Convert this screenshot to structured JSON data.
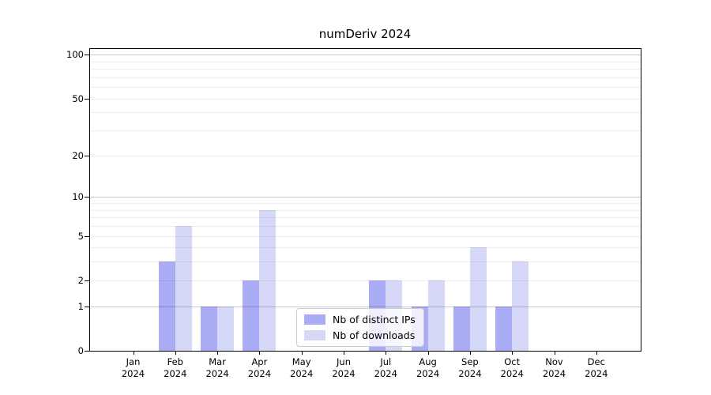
{
  "title": "numDeriv 2024",
  "chart_data": {
    "type": "bar",
    "title": "numDeriv 2024",
    "categories": [
      "Jan",
      "Feb",
      "Mar",
      "Apr",
      "May",
      "Jun",
      "Jul",
      "Aug",
      "Sep",
      "Oct",
      "Nov",
      "Dec"
    ],
    "year": "2024",
    "xlabel": "",
    "ylabel": "",
    "yscale": "log1p",
    "ylim": [
      0,
      110
    ],
    "ytick_labels": [
      0,
      1,
      2,
      5,
      10,
      20,
      50,
      100
    ],
    "grid_minor_values": [
      2,
      3,
      4,
      5,
      6,
      7,
      8,
      9,
      20,
      30,
      40,
      50,
      60,
      70,
      80,
      90
    ],
    "grid_major_values": [
      1,
      10,
      100
    ],
    "grid": "horizontal",
    "legend_position": "inside-bottom-center",
    "series": [
      {
        "name": "Nb of distinct IPs",
        "color": "#aaacf5",
        "values": [
          0,
          3,
          1,
          2,
          0,
          0,
          2,
          1,
          1,
          1,
          0,
          0
        ]
      },
      {
        "name": "Nb of downloads",
        "color": "#d6d8f8",
        "values": [
          0,
          6,
          1,
          8,
          0,
          0,
          2,
          2,
          4,
          3,
          0,
          0
        ]
      }
    ],
    "colors": {
      "grid_major": "#c9c9c9",
      "grid_minor": "#ededed",
      "axis": "#000000",
      "background": "#ffffff"
    }
  }
}
